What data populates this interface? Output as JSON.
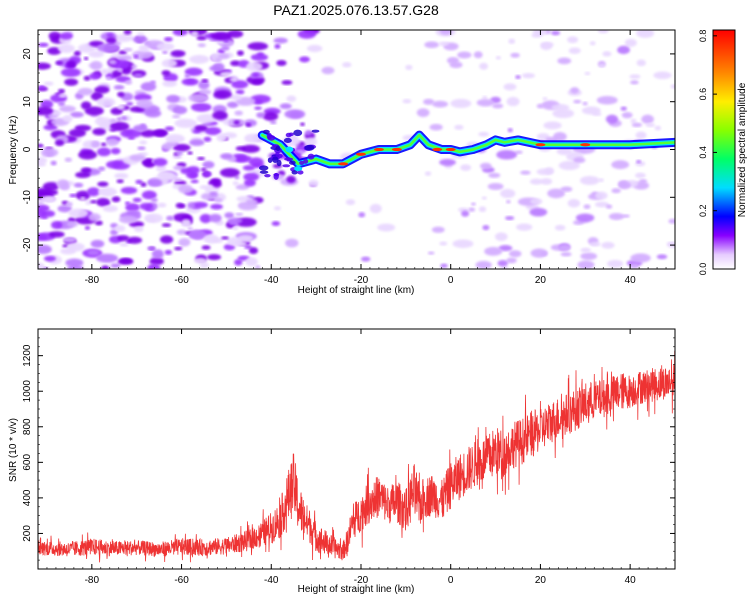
{
  "figure_title": "PAZ1.2025.076.13.57.G28",
  "chart_data": [
    {
      "type": "heatmap",
      "title": "PAZ1.2025.076.13.57.G28",
      "xlabel": "Height of straight line (km)",
      "ylabel": "Frequency (Hz)",
      "xlim": [
        -92,
        50
      ],
      "ylim": [
        -25,
        25
      ],
      "x_ticks": [
        "-80",
        "-60",
        "-40",
        "-20",
        "0",
        "20",
        "40"
      ],
      "y_ticks": [
        "20",
        "10",
        "0",
        "-10",
        "-20"
      ],
      "colorbar": {
        "label": "Normalized spectral amplitude",
        "range": [
          0.0,
          0.82
        ],
        "ticks": [
          "0.0",
          "0.2",
          "0.4",
          "0.6",
          "0.8"
        ]
      },
      "ridge_line": {
        "x": [
          -42,
          -38,
          -34,
          -30,
          -27,
          -24,
          -20,
          -16,
          -12,
          -9,
          -7,
          -5,
          -2,
          0,
          2,
          5,
          8,
          10,
          12,
          15,
          20,
          30,
          40,
          50
        ],
        "y": [
          3,
          1,
          -3,
          -2,
          -3,
          -3,
          -1,
          0,
          0,
          1,
          3,
          1,
          0,
          0,
          -0.5,
          0,
          1,
          2,
          1.5,
          2,
          1,
          1,
          1,
          1.5
        ]
      }
    },
    {
      "type": "line",
      "title": "",
      "xlabel": "Height of straight line (km)",
      "ylabel": "SNR (10 * v/v)",
      "xlim": [
        -92,
        50
      ],
      "ylim": [
        0,
        1350
      ],
      "x_ticks": [
        "-80",
        "-60",
        "-40",
        "-20",
        "0",
        "20",
        "40"
      ],
      "y_ticks": [
        "200",
        "400",
        "600",
        "800",
        "1000",
        "1200"
      ],
      "color": "#ee3333",
      "series": [
        {
          "x": [
            -92,
            -85,
            -80,
            -75,
            -70,
            -65,
            -60,
            -55,
            -50,
            -45,
            -42,
            -40,
            -38,
            -36,
            -35,
            -34,
            -33,
            -32,
            -31,
            -30,
            -28,
            -26,
            -24,
            -23,
            -22,
            -20,
            -18,
            -16,
            -14,
            -12,
            -10,
            -8,
            -7,
            -6,
            -4,
            -2,
            0,
            2,
            4,
            6,
            8,
            10,
            12,
            14,
            16,
            18,
            20,
            22,
            24,
            26,
            28,
            30,
            32,
            34,
            36,
            38,
            40,
            42,
            44,
            46,
            48,
            50
          ],
          "values": [
            120,
            110,
            125,
            115,
            120,
            110,
            125,
            120,
            130,
            160,
            200,
            230,
            280,
            420,
            480,
            360,
            300,
            260,
            230,
            180,
            150,
            120,
            100,
            160,
            250,
            320,
            380,
            410,
            360,
            380,
            330,
            450,
            350,
            400,
            420,
            380,
            470,
            520,
            560,
            600,
            620,
            660,
            650,
            700,
            720,
            760,
            780,
            820,
            850,
            870,
            900,
            930,
            950,
            960,
            980,
            1000,
            1000,
            1020,
            1030,
            1040,
            1050,
            1060
          ],
          "noise_amplitude": [
            70,
            70,
            80,
            70,
            70,
            70,
            80,
            80,
            80,
            100,
            120,
            150,
            180,
            260,
            300,
            250,
            200,
            170,
            160,
            140,
            120,
            100,
            90,
            120,
            160,
            180,
            200,
            200,
            180,
            200,
            200,
            260,
            200,
            200,
            200,
            200,
            220,
            220,
            220,
            220,
            220,
            240,
            220,
            220,
            220,
            220,
            200,
            200,
            200,
            200,
            200,
            200,
            180,
            180,
            180,
            180,
            160,
            160,
            160,
            160,
            160,
            160
          ]
        }
      ]
    }
  ]
}
